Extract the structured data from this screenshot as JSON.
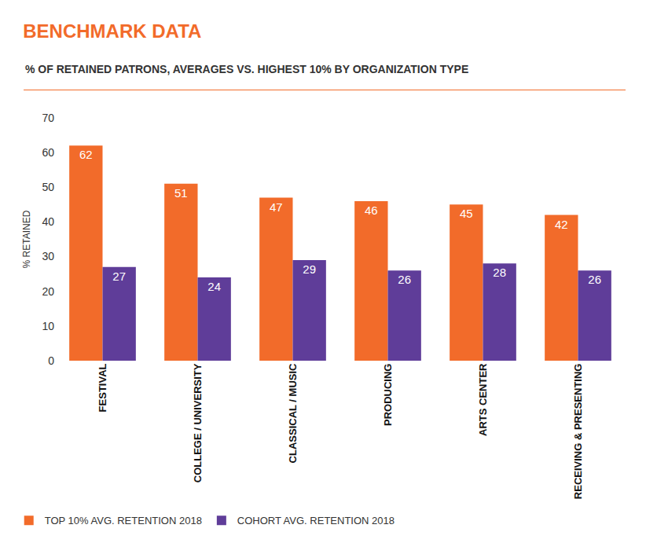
{
  "chart_data": {
    "type": "bar",
    "title": "BENCHMARK DATA",
    "subtitle": "% OF RETAINED PATRONS, AVERAGES VS. HIGHEST 10% BY ORGANIZATION TYPE",
    "y_label": "% RETAINED",
    "categories": [
      "FESTIVAL",
      "COLLEGE / UNIVERSITY",
      "CLASSICAL / MUSIC",
      "PRODUCING",
      "ARTS CENTER",
      "RECEIVING & PRESENTING"
    ],
    "series": [
      {
        "name": "TOP 10% AVG. RETENTION 2018",
        "color": "#f26b2a",
        "values": [
          62,
          51,
          47,
          46,
          45,
          42
        ]
      },
      {
        "name": "COHORT AVG. RETENTION 2018",
        "color": "#5f3d99",
        "values": [
          27,
          24,
          29,
          26,
          28,
          26
        ]
      }
    ],
    "ylim": [
      0,
      70
    ],
    "yticks": [
      0,
      10,
      20,
      30,
      40,
      50,
      60,
      70
    ],
    "grid": false,
    "data_labels": true,
    "legend": "lower left"
  }
}
